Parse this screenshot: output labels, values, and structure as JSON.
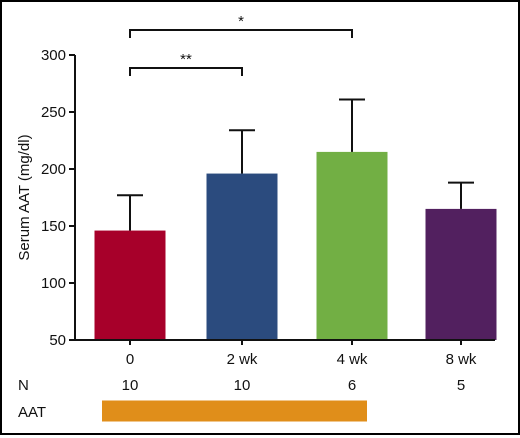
{
  "chart_data": {
    "type": "bar",
    "title": "",
    "xlabel": "",
    "ylabel": "Serum AAT (mg/dl)",
    "ylim": [
      50,
      300
    ],
    "yticks": [
      50,
      100,
      150,
      200,
      250,
      300
    ],
    "categories": [
      "0",
      "2 wk",
      "4 wk",
      "8 wk"
    ],
    "values": [
      146,
      196,
      215,
      165
    ],
    "errors": [
      31,
      38,
      46,
      23
    ],
    "colors": [
      "#a7002a",
      "#2b4b7e",
      "#72af44",
      "#52205f"
    ],
    "n_label": "N",
    "n_values": [
      "10",
      "10",
      "6",
      "5"
    ],
    "treatment": {
      "label": "AAT",
      "color": "#e08e1a",
      "from_category": 0,
      "to_category": 2
    },
    "significance": [
      {
        "from": 0,
        "to": 1,
        "label": "**"
      },
      {
        "from": 0,
        "to": 2,
        "label": "*"
      }
    ],
    "grid": false,
    "legend": "none"
  }
}
